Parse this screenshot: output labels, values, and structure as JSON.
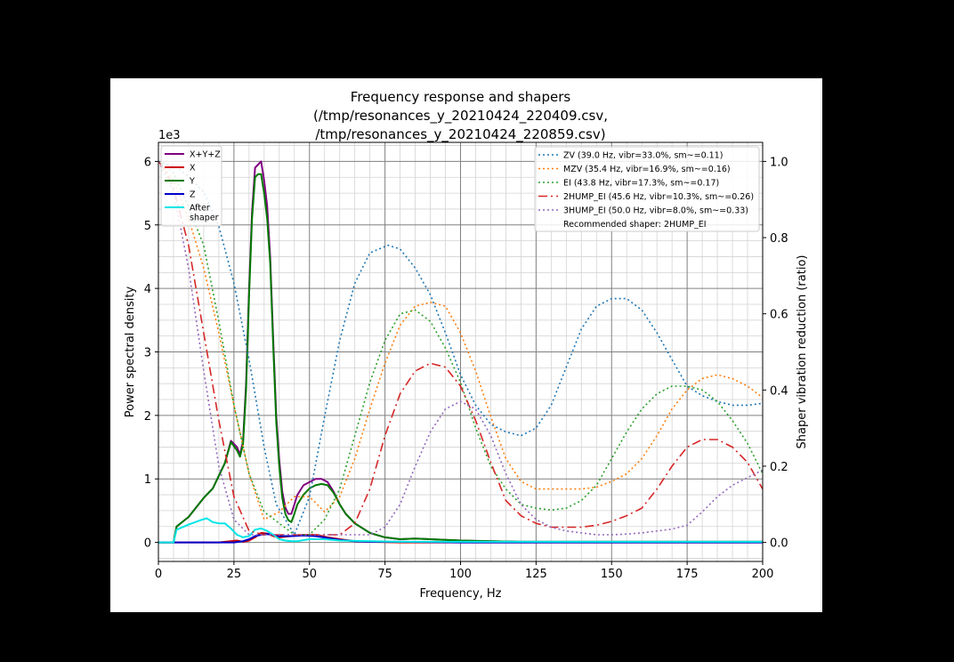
{
  "chart_data": {
    "type": "line",
    "title_lines": [
      "Frequency response and shapers",
      "(/tmp/resonances_y_20210424_220409.csv,",
      "/tmp/resonances_y_20210424_220859.csv)"
    ],
    "xlabel": "Frequency, Hz",
    "ylabel": "Power spectral density",
    "ylabel_right": "Shaper vibration reduction (ratio)",
    "y_offset_label": "1e3",
    "xlim": [
      0,
      200
    ],
    "ylim": [
      -0.3,
      6.3
    ],
    "ylim_right": [
      -0.05,
      1.05
    ],
    "x_ticks": [
      0,
      25,
      50,
      75,
      100,
      125,
      150,
      175,
      200
    ],
    "x_tick_labels": [
      "0",
      "25",
      "50",
      "75",
      "100",
      "125",
      "150",
      "175",
      "200"
    ],
    "y_ticks": [
      0,
      1,
      2,
      3,
      4,
      5,
      6
    ],
    "y_tick_labels": [
      "0",
      "1",
      "2",
      "3",
      "4",
      "5",
      "6"
    ],
    "y_right_ticks": [
      0.0,
      0.2,
      0.4,
      0.6,
      0.8,
      1.0
    ],
    "y_right_tick_labels": [
      "0.0",
      "0.2",
      "0.4",
      "0.6",
      "0.8",
      "1.0"
    ],
    "grid": true,
    "legend_left": "top-left",
    "legend_right": "top-right",
    "series": [
      {
        "name": "X+Y+Z",
        "color": "#800080",
        "width": 2,
        "dash": "",
        "axis": "left",
        "x": [
          0,
          3,
          5,
          6,
          10,
          15,
          18,
          20,
          22,
          24,
          26,
          27,
          28,
          29,
          30,
          31,
          32,
          33,
          34,
          35,
          36,
          37,
          38,
          39,
          40,
          41,
          42,
          43,
          44,
          45,
          46,
          48,
          50,
          52,
          54,
          56,
          58,
          60,
          62,
          65,
          70,
          75,
          80,
          85,
          90,
          95,
          100,
          110,
          120,
          150,
          200
        ],
        "y": [
          0,
          0,
          0,
          0.25,
          0.4,
          0.7,
          0.85,
          1.05,
          1.25,
          1.6,
          1.5,
          1.38,
          1.6,
          2.5,
          4.0,
          5.2,
          5.9,
          5.95,
          6.0,
          5.7,
          5.3,
          4.5,
          3.2,
          2.0,
          1.3,
          0.8,
          0.55,
          0.45,
          0.45,
          0.6,
          0.75,
          0.9,
          0.95,
          1.0,
          1.0,
          0.95,
          0.8,
          0.6,
          0.45,
          0.3,
          0.15,
          0.08,
          0.05,
          0.06,
          0.05,
          0.04,
          0.03,
          0.02,
          0.01,
          0.01,
          0.01
        ]
      },
      {
        "name": "X",
        "color": "#cc0000",
        "width": 2,
        "dash": "",
        "axis": "left",
        "x": [
          0,
          20,
          24,
          26,
          28,
          30,
          32,
          34,
          36,
          38,
          40,
          44,
          48,
          52,
          56,
          60,
          65,
          70,
          80,
          100,
          200
        ],
        "y": [
          0,
          0,
          0.02,
          0.03,
          0.01,
          0.03,
          0.08,
          0.15,
          0.14,
          0.1,
          0.08,
          0.1,
          0.12,
          0.12,
          0.08,
          0.05,
          0.02,
          0.01,
          0,
          0,
          0
        ]
      },
      {
        "name": "Y",
        "color": "#007a00",
        "width": 2,
        "dash": "",
        "axis": "left",
        "x": [
          0,
          3,
          5,
          6,
          10,
          15,
          18,
          20,
          22,
          24,
          26,
          27,
          28,
          29,
          30,
          31,
          32,
          33,
          34,
          35,
          36,
          37,
          38,
          39,
          40,
          41,
          42,
          43,
          44,
          45,
          46,
          48,
          50,
          52,
          54,
          56,
          58,
          60,
          62,
          65,
          70,
          75,
          80,
          85,
          90,
          95,
          100,
          110,
          120,
          150,
          200
        ],
        "y": [
          0,
          0,
          0,
          0.25,
          0.4,
          0.7,
          0.85,
          1.05,
          1.25,
          1.58,
          1.45,
          1.35,
          1.55,
          2.4,
          3.9,
          5.1,
          5.75,
          5.8,
          5.8,
          5.5,
          5.1,
          4.4,
          3.1,
          1.9,
          1.2,
          0.7,
          0.45,
          0.35,
          0.32,
          0.45,
          0.6,
          0.75,
          0.85,
          0.9,
          0.92,
          0.9,
          0.78,
          0.6,
          0.45,
          0.3,
          0.15,
          0.08,
          0.05,
          0.06,
          0.05,
          0.04,
          0.03,
          0.02,
          0.01,
          0.01,
          0.01
        ]
      },
      {
        "name": "Z",
        "color": "#0000cc",
        "width": 2,
        "dash": "",
        "axis": "left",
        "x": [
          0,
          25,
          28,
          30,
          32,
          34,
          36,
          38,
          40,
          44,
          48,
          52,
          56,
          60,
          65,
          70,
          80,
          100,
          200
        ],
        "y": [
          0,
          0,
          0.02,
          0.05,
          0.1,
          0.12,
          0.13,
          0.12,
          0.1,
          0.1,
          0.11,
          0.1,
          0.07,
          0.04,
          0.02,
          0.01,
          0.01,
          0,
          0
        ]
      },
      {
        "name": "After\nshaper",
        "color": "#00e5e5",
        "width": 2,
        "dash": "",
        "axis": "left",
        "x": [
          0,
          3,
          5,
          6,
          10,
          14,
          16,
          18,
          20,
          22,
          24,
          26,
          28,
          30,
          32,
          34,
          36,
          38,
          40,
          42,
          44,
          46,
          50,
          55,
          60,
          80,
          100,
          200
        ],
        "y": [
          0,
          0,
          0,
          0.2,
          0.28,
          0.35,
          0.38,
          0.32,
          0.3,
          0.3,
          0.22,
          0.12,
          0.08,
          0.1,
          0.2,
          0.22,
          0.18,
          0.12,
          0.05,
          0.03,
          0.02,
          0.02,
          0.05,
          0.05,
          0.03,
          0.01,
          0.01,
          0.01
        ]
      },
      {
        "name": "ZV (39.0 Hz, vibr=33.0%, sm~=0.11)",
        "color": "#1f77b4",
        "width": 1.6,
        "dash": "2,3",
        "axis": "right",
        "x": [
          0,
          6,
          10,
          15,
          20,
          25,
          30,
          35,
          39,
          45,
          50,
          55,
          60,
          65,
          70,
          76,
          80,
          85,
          90,
          95,
          100,
          105,
          110,
          115,
          120,
          125,
          130,
          135,
          140,
          145,
          150,
          155,
          160,
          165,
          170,
          175,
          180,
          185,
          190,
          195,
          200
        ],
        "y": [
          1.0,
          0.985,
          0.96,
          0.92,
          0.83,
          0.68,
          0.48,
          0.25,
          0.1,
          0.02,
          0.12,
          0.33,
          0.53,
          0.68,
          0.76,
          0.78,
          0.77,
          0.72,
          0.65,
          0.55,
          0.44,
          0.36,
          0.31,
          0.29,
          0.28,
          0.3,
          0.36,
          0.46,
          0.56,
          0.62,
          0.64,
          0.64,
          0.61,
          0.55,
          0.48,
          0.41,
          0.385,
          0.37,
          0.36,
          0.36,
          0.365
        ]
      },
      {
        "name": "MZV (35.4 Hz, vibr=16.9%, sm~=0.16)",
        "color": "#ff7f0e",
        "width": 1.6,
        "dash": "2,3",
        "axis": "right",
        "x": [
          0,
          5,
          10,
          15,
          20,
          25,
          30,
          35,
          40,
          45,
          50,
          55,
          60,
          65,
          70,
          75,
          80,
          85,
          90,
          95,
          100,
          105,
          110,
          115,
          120,
          125,
          130,
          135,
          140,
          145,
          150,
          155,
          160,
          165,
          170,
          175,
          180,
          185,
          190,
          195,
          200
        ],
        "y": [
          1.0,
          0.95,
          0.85,
          0.72,
          0.55,
          0.36,
          0.18,
          0.06,
          0.08,
          0.12,
          0.12,
          0.08,
          0.12,
          0.22,
          0.35,
          0.47,
          0.57,
          0.62,
          0.63,
          0.62,
          0.55,
          0.45,
          0.33,
          0.22,
          0.16,
          0.14,
          0.14,
          0.14,
          0.14,
          0.145,
          0.16,
          0.18,
          0.22,
          0.28,
          0.35,
          0.4,
          0.43,
          0.44,
          0.43,
          0.41,
          0.38
        ]
      },
      {
        "name": "EI (43.8 Hz, vibr=17.3%, sm~=0.17)",
        "color": "#2ca02c",
        "width": 1.6,
        "dash": "2,3",
        "axis": "right",
        "x": [
          0,
          5,
          10,
          15,
          20,
          25,
          30,
          35,
          40,
          45,
          50,
          55,
          60,
          65,
          70,
          75,
          80,
          85,
          90,
          95,
          100,
          105,
          110,
          115,
          120,
          125,
          130,
          135,
          140,
          145,
          150,
          155,
          160,
          165,
          170,
          175,
          180,
          185,
          190,
          195,
          200
        ],
        "y": [
          1.0,
          0.97,
          0.88,
          0.78,
          0.58,
          0.36,
          0.18,
          0.08,
          0.05,
          0.02,
          0.02,
          0.06,
          0.14,
          0.28,
          0.42,
          0.53,
          0.6,
          0.61,
          0.58,
          0.51,
          0.42,
          0.3,
          0.2,
          0.14,
          0.1,
          0.09,
          0.085,
          0.09,
          0.11,
          0.15,
          0.22,
          0.29,
          0.35,
          0.39,
          0.41,
          0.41,
          0.4,
          0.37,
          0.32,
          0.26,
          0.18
        ]
      },
      {
        "name": "2HUMP_EI (45.6 Hz, vibr=10.3%, sm~=0.26)",
        "color": "#d62728",
        "width": 1.6,
        "dash": "10,4,2,4",
        "axis": "right",
        "x": [
          0,
          2,
          5,
          10,
          15,
          20,
          25,
          30,
          35,
          40,
          45,
          50,
          55,
          60,
          65,
          70,
          75,
          80,
          85,
          90,
          95,
          100,
          105,
          110,
          115,
          120,
          125,
          130,
          135,
          140,
          145,
          150,
          155,
          160,
          165,
          170,
          175,
          180,
          185,
          190,
          195,
          200
        ],
        "y": [
          1.0,
          0.98,
          0.93,
          0.78,
          0.55,
          0.32,
          0.12,
          0.03,
          0.02,
          0.02,
          0.02,
          0.02,
          0.02,
          0.02,
          0.05,
          0.14,
          0.28,
          0.39,
          0.45,
          0.47,
          0.46,
          0.41,
          0.32,
          0.21,
          0.11,
          0.07,
          0.05,
          0.04,
          0.04,
          0.04,
          0.045,
          0.055,
          0.07,
          0.09,
          0.14,
          0.2,
          0.25,
          0.27,
          0.27,
          0.25,
          0.21,
          0.14
        ]
      },
      {
        "name": "3HUMP_EI (50.0 Hz, vibr=8.0%, sm~=0.33)",
        "color": "#9467bd",
        "width": 1.6,
        "dash": "2,3",
        "axis": "right",
        "x": [
          0,
          5,
          10,
          15,
          20,
          25,
          30,
          35,
          40,
          45,
          50,
          55,
          60,
          65,
          70,
          75,
          80,
          85,
          90,
          95,
          100,
          105,
          110,
          115,
          120,
          125,
          130,
          135,
          140,
          145,
          150,
          155,
          160,
          165,
          170,
          175,
          180,
          185,
          190,
          195,
          200
        ],
        "y": [
          1.0,
          0.92,
          0.72,
          0.45,
          0.2,
          0.06,
          0.02,
          0.02,
          0.02,
          0.02,
          0.02,
          0.02,
          0.02,
          0.02,
          0.02,
          0.04,
          0.1,
          0.2,
          0.29,
          0.35,
          0.37,
          0.35,
          0.28,
          0.18,
          0.1,
          0.06,
          0.04,
          0.03,
          0.025,
          0.02,
          0.02,
          0.022,
          0.025,
          0.03,
          0.035,
          0.045,
          0.08,
          0.12,
          0.15,
          0.17,
          0.19
        ]
      }
    ],
    "legend_note": "Recommended shaper: 2HUMP_EI"
  }
}
